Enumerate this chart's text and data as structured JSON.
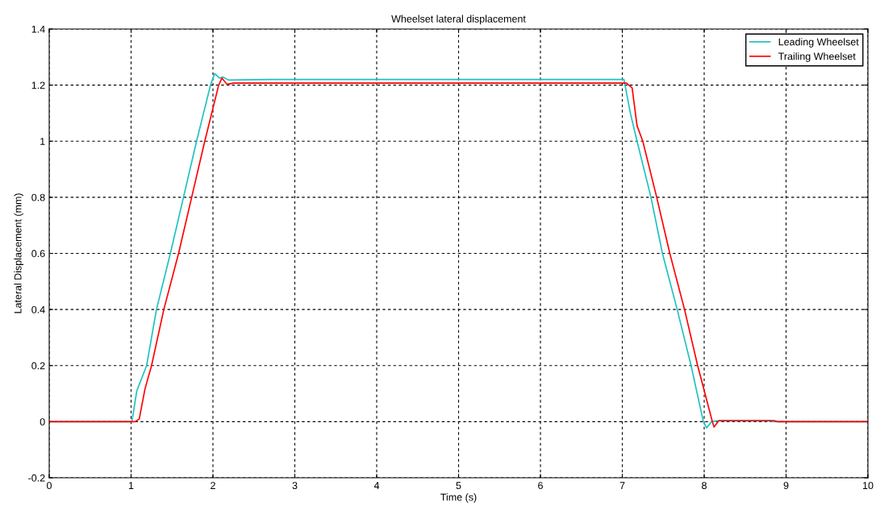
{
  "chart_data": {
    "type": "line",
    "title": "Wheelset lateral displacement",
    "xlabel": "Time (s)",
    "ylabel": "Lateral Displacement (mm)",
    "xlim": [
      0,
      10
    ],
    "ylim": [
      -0.2,
      1.4
    ],
    "xticks": [
      0,
      1,
      2,
      3,
      4,
      5,
      6,
      7,
      8,
      9,
      10
    ],
    "yticks": [
      -0.2,
      0,
      0.2,
      0.4,
      0.6,
      0.8,
      1,
      1.2,
      1.4
    ],
    "grid": true,
    "legend": "top right",
    "line_style": "solid",
    "marker": "none",
    "series": [
      {
        "name": "Leading Wheelset",
        "color": "#20c0c0",
        "x": [
          0,
          1.01,
          1.07,
          1.19,
          1.31,
          1.48,
          1.64,
          1.8,
          1.97,
          2.02,
          2.08,
          2.12,
          2.19,
          2.7,
          7.02,
          7.1,
          7.18,
          7.35,
          7.49,
          7.67,
          7.84,
          7.99,
          8.03,
          8.09,
          8.15,
          8.8,
          8.85,
          10
        ],
        "values": [
          0,
          0,
          0.11,
          0.2,
          0.4,
          0.6,
          0.8,
          1.0,
          1.2,
          1.241,
          1.225,
          1.229,
          1.218,
          1.22,
          1.22,
          1.098,
          1.0,
          0.8,
          0.6,
          0.4,
          0.2,
          0,
          -0.022,
          0,
          0.003,
          0.003,
          0,
          0
        ]
      },
      {
        "name": "Trailing Wheelset",
        "color": "#ff0000",
        "x": [
          0,
          1.05,
          1.1,
          1.17,
          1.25,
          1.4,
          1.58,
          1.74,
          1.9,
          2.07,
          2.11,
          2.17,
          2.25,
          7.05,
          7.12,
          7.18,
          7.25,
          7.42,
          7.58,
          7.76,
          7.92,
          8.1,
          8.12,
          8.18,
          8.85,
          8.9,
          10
        ],
        "values": [
          0,
          0,
          0.01,
          0.117,
          0.2,
          0.4,
          0.6,
          0.8,
          1.0,
          1.2,
          1.225,
          1.203,
          1.207,
          1.207,
          1.19,
          1.055,
          1.0,
          0.8,
          0.6,
          0.4,
          0.2,
          0,
          -0.019,
          0.004,
          0.004,
          0,
          0
        ]
      }
    ]
  }
}
